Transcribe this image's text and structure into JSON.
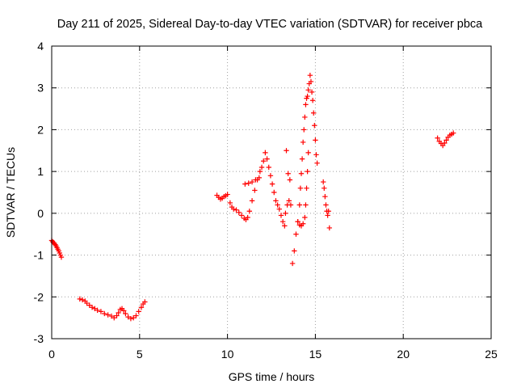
{
  "chart_data": {
    "type": "scatter",
    "title": "Day 211 of 2025, Sidereal Day-to-day VTEC variation (SDTVAR) for receiver pbca",
    "xlabel": "GPS time / hours",
    "ylabel": "SDTVAR / TECUs",
    "xlim": [
      0,
      25
    ],
    "ylim": [
      -3,
      4
    ],
    "xticks": [
      0,
      5,
      10,
      15,
      20,
      25
    ],
    "xtick_labels": [
      "0",
      "5",
      "10",
      "15",
      "20",
      "25"
    ],
    "yticks": [
      -3,
      -2,
      -1,
      0,
      1,
      2,
      3,
      4
    ],
    "ytick_labels": [
      "-3",
      "-2",
      "-1",
      "0",
      "1",
      "2",
      "3",
      "4"
    ],
    "grid": true,
    "marker": "+",
    "color": "#ff0000",
    "series": [
      {
        "name": "pbca",
        "points": [
          [
            0.0,
            -0.65
          ],
          [
            0.05,
            -0.68
          ],
          [
            0.1,
            -0.7
          ],
          [
            0.15,
            -0.72
          ],
          [
            0.2,
            -0.75
          ],
          [
            0.25,
            -0.78
          ],
          [
            0.3,
            -0.82
          ],
          [
            0.35,
            -0.86
          ],
          [
            0.4,
            -0.9
          ],
          [
            0.45,
            -0.95
          ],
          [
            0.5,
            -1.0
          ],
          [
            0.55,
            -1.05
          ],
          [
            1.6,
            -2.05
          ],
          [
            1.75,
            -2.07
          ],
          [
            1.9,
            -2.1
          ],
          [
            2.0,
            -2.15
          ],
          [
            2.15,
            -2.2
          ],
          [
            2.3,
            -2.25
          ],
          [
            2.45,
            -2.28
          ],
          [
            2.6,
            -2.32
          ],
          [
            2.8,
            -2.35
          ],
          [
            3.0,
            -2.4
          ],
          [
            3.2,
            -2.43
          ],
          [
            3.4,
            -2.46
          ],
          [
            3.55,
            -2.5
          ],
          [
            3.7,
            -2.45
          ],
          [
            3.8,
            -2.38
          ],
          [
            3.9,
            -2.3
          ],
          [
            4.0,
            -2.28
          ],
          [
            4.1,
            -2.33
          ],
          [
            4.2,
            -2.4
          ],
          [
            4.35,
            -2.48
          ],
          [
            4.5,
            -2.52
          ],
          [
            4.65,
            -2.5
          ],
          [
            4.8,
            -2.45
          ],
          [
            4.95,
            -2.35
          ],
          [
            5.1,
            -2.25
          ],
          [
            5.2,
            -2.17
          ],
          [
            5.3,
            -2.12
          ],
          [
            9.4,
            0.43
          ],
          [
            9.5,
            0.38
          ],
          [
            9.6,
            0.34
          ],
          [
            9.7,
            0.36
          ],
          [
            9.8,
            0.4
          ],
          [
            9.9,
            0.42
          ],
          [
            10.0,
            0.45
          ],
          [
            10.15,
            0.25
          ],
          [
            10.25,
            0.15
          ],
          [
            10.35,
            0.1
          ],
          [
            10.5,
            0.08
          ],
          [
            10.65,
            0.02
          ],
          [
            10.8,
            -0.05
          ],
          [
            10.95,
            -0.12
          ],
          [
            11.05,
            -0.15
          ],
          [
            11.15,
            -0.1
          ],
          [
            11.25,
            0.05
          ],
          [
            11.4,
            0.3
          ],
          [
            11.55,
            0.55
          ],
          [
            11.7,
            0.8
          ],
          [
            11.85,
            1.0
          ],
          [
            11.95,
            1.1
          ],
          [
            12.05,
            1.25
          ],
          [
            12.15,
            1.45
          ],
          [
            12.25,
            1.3
          ],
          [
            12.35,
            1.1
          ],
          [
            12.45,
            0.9
          ],
          [
            12.55,
            0.7
          ],
          [
            12.65,
            0.5
          ],
          [
            12.75,
            0.3
          ],
          [
            12.85,
            0.2
          ],
          [
            12.95,
            0.1
          ],
          [
            13.05,
            -0.05
          ],
          [
            13.15,
            -0.2
          ],
          [
            13.25,
            -0.3
          ],
          [
            13.3,
            0.0
          ],
          [
            13.4,
            0.2
          ],
          [
            13.5,
            0.3
          ],
          [
            13.6,
            0.2
          ],
          [
            11.0,
            0.7
          ],
          [
            11.2,
            0.72
          ],
          [
            11.4,
            0.75
          ],
          [
            11.6,
            0.8
          ],
          [
            11.8,
            0.85
          ],
          [
            13.35,
            1.5
          ],
          [
            13.45,
            0.95
          ],
          [
            13.55,
            0.8
          ],
          [
            13.7,
            -1.2
          ],
          [
            13.8,
            -0.9
          ],
          [
            13.9,
            -0.5
          ],
          [
            14.0,
            -0.2
          ],
          [
            14.1,
            0.2
          ],
          [
            14.15,
            0.6
          ],
          [
            14.2,
            0.95
          ],
          [
            14.25,
            1.3
          ],
          [
            14.3,
            1.7
          ],
          [
            14.35,
            2.0
          ],
          [
            14.4,
            2.3
          ],
          [
            14.45,
            2.6
          ],
          [
            14.5,
            2.75
          ],
          [
            14.55,
            2.8
          ],
          [
            14.6,
            2.95
          ],
          [
            14.65,
            3.1
          ],
          [
            14.7,
            3.3
          ],
          [
            14.75,
            3.15
          ],
          [
            14.8,
            2.9
          ],
          [
            14.85,
            2.7
          ],
          [
            14.9,
            2.4
          ],
          [
            14.95,
            2.1
          ],
          [
            15.0,
            1.75
          ],
          [
            15.05,
            1.4
          ],
          [
            15.1,
            1.2
          ],
          [
            14.4,
            -0.1
          ],
          [
            14.3,
            -0.25
          ],
          [
            14.2,
            -0.3
          ],
          [
            14.1,
            -0.28
          ],
          [
            14.0,
            -0.2
          ],
          [
            14.45,
            0.2
          ],
          [
            14.5,
            0.6
          ],
          [
            14.55,
            1.0
          ],
          [
            14.6,
            1.45
          ],
          [
            15.45,
            0.75
          ],
          [
            15.5,
            0.6
          ],
          [
            15.55,
            0.4
          ],
          [
            15.6,
            0.2
          ],
          [
            15.65,
            0.05
          ],
          [
            15.7,
            -0.05
          ],
          [
            15.75,
            0.05
          ],
          [
            15.8,
            -0.35
          ],
          [
            21.95,
            1.8
          ],
          [
            22.05,
            1.72
          ],
          [
            22.15,
            1.67
          ],
          [
            22.25,
            1.62
          ],
          [
            22.35,
            1.68
          ],
          [
            22.45,
            1.75
          ],
          [
            22.55,
            1.82
          ],
          [
            22.65,
            1.87
          ],
          [
            22.75,
            1.89
          ],
          [
            22.85,
            1.92
          ]
        ]
      }
    ]
  }
}
